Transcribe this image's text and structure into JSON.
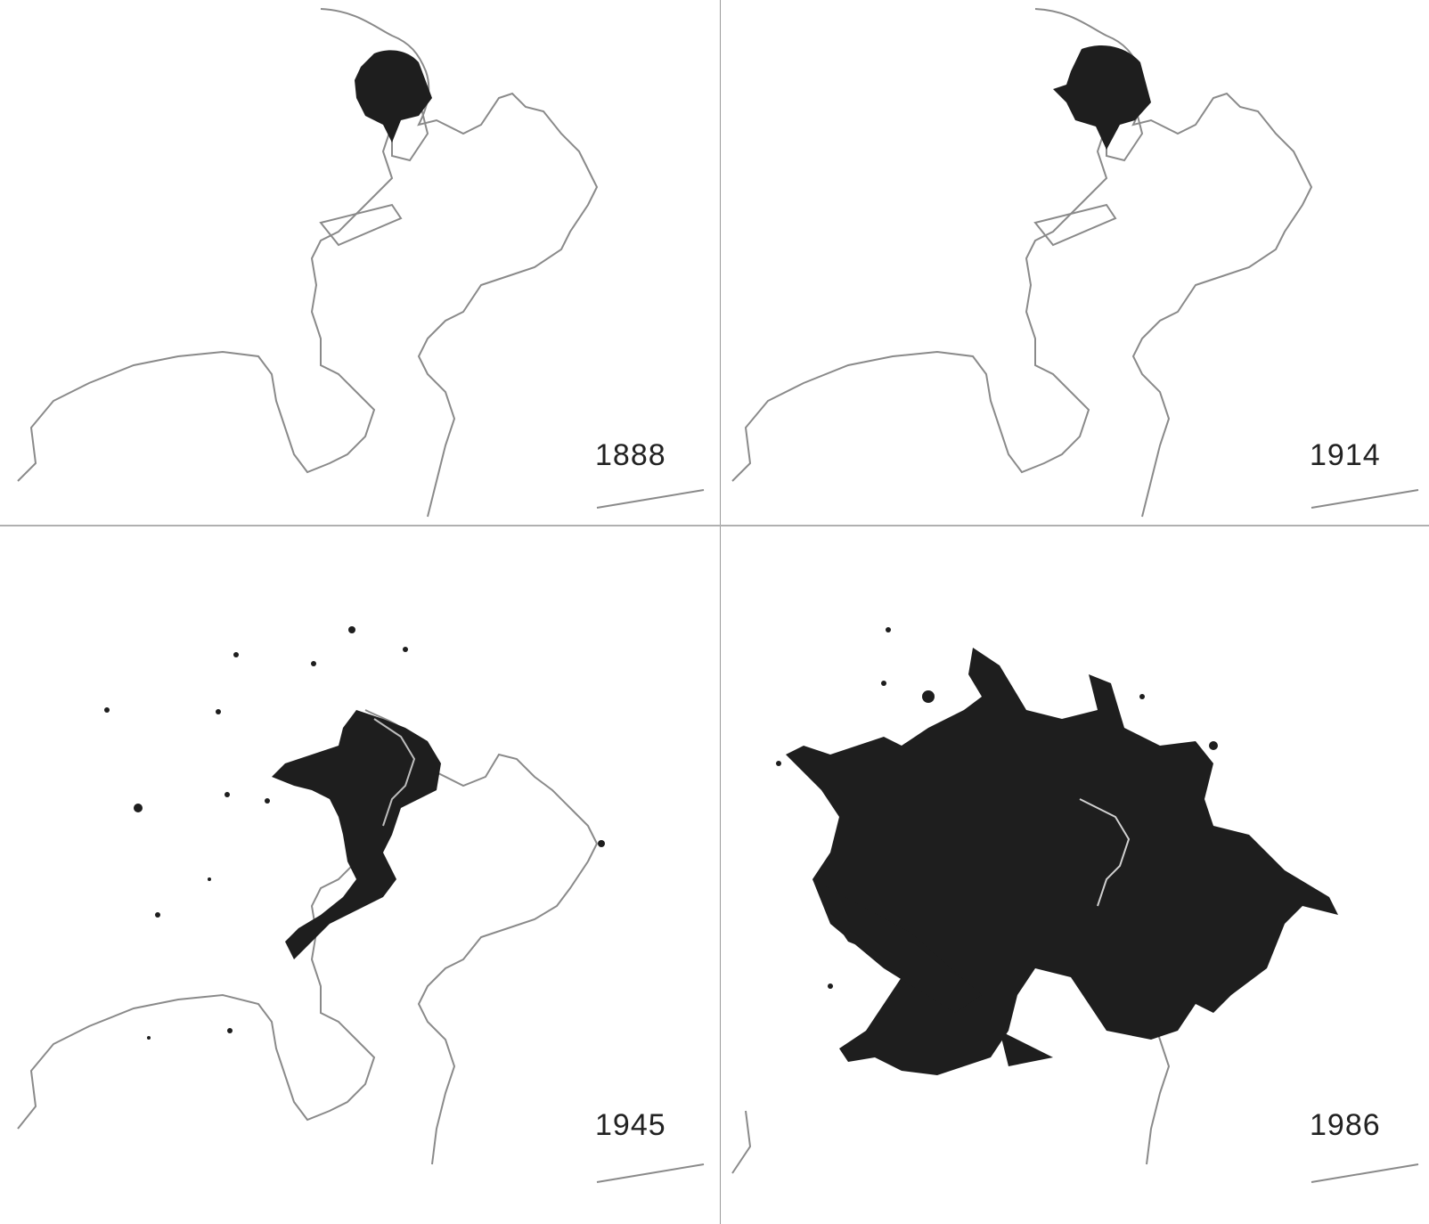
{
  "figure": {
    "panels": [
      {
        "year_label": "1888",
        "urban_extent": "small core"
      },
      {
        "year_label": "1914",
        "urban_extent": "slightly expanded core"
      },
      {
        "year_label": "1945",
        "urban_extent": "expanded along bay with scattered patches"
      },
      {
        "year_label": "1986",
        "urban_extent": "extensive metropolitan sprawl"
      }
    ],
    "colors": {
      "urban_fill": "#1e1e1e",
      "coastline": "#8a8a8a",
      "background": "#ffffff",
      "divider": "#a0a0a0"
    }
  }
}
